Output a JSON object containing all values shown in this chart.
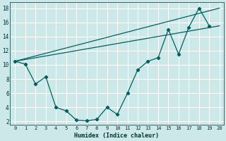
{
  "xlabel": "Humidex (Indice chaleur)",
  "bg_color": "#cce8e8",
  "grid_color": "#ffffff",
  "line_color": "#006060",
  "xlim": [
    -0.5,
    20.4
  ],
  "ylim": [
    1.5,
    18.8
  ],
  "xticks": [
    0,
    1,
    2,
    3,
    4,
    5,
    6,
    7,
    8,
    9,
    10,
    11,
    12,
    13,
    14,
    15,
    16,
    17,
    18,
    19,
    20
  ],
  "yticks": [
    2,
    4,
    6,
    8,
    10,
    12,
    14,
    16,
    18
  ],
  "line1_x": [
    0,
    1,
    2,
    3,
    4,
    5,
    6,
    7,
    8,
    9,
    10,
    11,
    12,
    13,
    14,
    15,
    16,
    17,
    18,
    19
  ],
  "line1_y": [
    10.5,
    10.1,
    7.3,
    8.3,
    4.0,
    3.5,
    2.2,
    2.1,
    2.3,
    4.0,
    3.0,
    6.0,
    9.3,
    10.5,
    11.0,
    15.0,
    11.5,
    15.3,
    18.0,
    15.5
  ],
  "line2_x": [
    0,
    20
  ],
  "line2_y": [
    10.5,
    18.0
  ],
  "line3_x": [
    0,
    20
  ],
  "line3_y": [
    10.5,
    15.5
  ],
  "line4_x": [
    0,
    3
  ],
  "line4_y": [
    10.5,
    8.3
  ]
}
